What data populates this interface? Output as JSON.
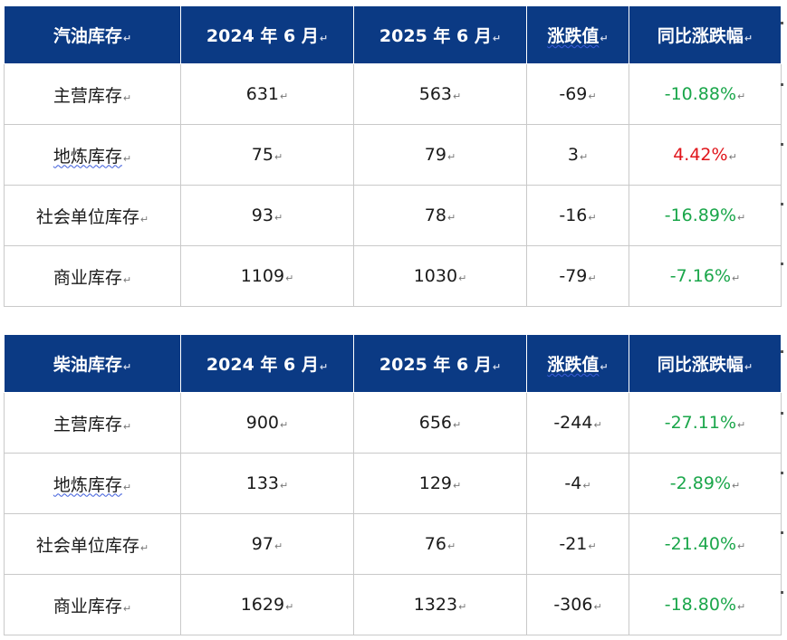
{
  "tables": [
    {
      "headers": [
        "汽油库存",
        "2024 年 6 月",
        "2025 年 6 月",
        "涨跌值",
        "同比涨跌幅"
      ],
      "rows": [
        {
          "name": "主营库存",
          "y2024": "631",
          "y2025": "563",
          "diff": "-69",
          "pct": "-10.88%",
          "pct_dir": "down"
        },
        {
          "name": "地炼库存",
          "y2024": "75",
          "y2025": "79",
          "diff": "3",
          "pct": "4.42%",
          "pct_dir": "up"
        },
        {
          "name": "社会单位库存",
          "y2024": "93",
          "y2025": "78",
          "diff": "-16",
          "pct": "-16.89%",
          "pct_dir": "down"
        },
        {
          "name": "商业库存",
          "y2024": "1109",
          "y2025": "1030",
          "diff": "-79",
          "pct": "-7.16%",
          "pct_dir": "down"
        }
      ]
    },
    {
      "headers": [
        "柴油库存",
        "2024 年 6 月",
        "2025 年 6 月",
        "涨跌值",
        "同比涨跌幅"
      ],
      "rows": [
        {
          "name": "主营库存",
          "y2024": "900",
          "y2025": "656",
          "diff": "-244",
          "pct": "-27.11%",
          "pct_dir": "down"
        },
        {
          "name": "地炼库存",
          "y2024": "133",
          "y2025": "129",
          "diff": "-4",
          "pct": "-2.89%",
          "pct_dir": "down"
        },
        {
          "name": "社会单位库存",
          "y2024": "97",
          "y2025": "76",
          "diff": "-21",
          "pct": "-21.40%",
          "pct_dir": "down"
        },
        {
          "name": "商业库存",
          "y2024": "1629",
          "y2025": "1323",
          "diff": "-306",
          "pct": "-18.80%",
          "pct_dir": "down"
        }
      ]
    }
  ],
  "paragraph_mark": "↵",
  "colors": {
    "header_bg": "#0b3a84",
    "down": "#1aa64a",
    "up": "#e0141a"
  }
}
